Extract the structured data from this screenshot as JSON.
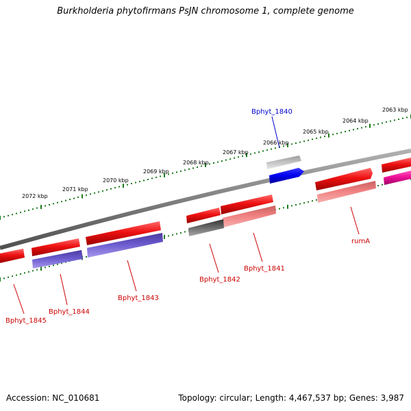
{
  "title": "Burkholderia phytofirmans PsJN chromosome 1, complete genome",
  "footer": {
    "accession": "Accession: NC_010681",
    "summary": "Topology: circular; Length: 4,467,537 bp; Genes: 3,987"
  },
  "scale": {
    "tick_labels": [
      "2063 kbp",
      "2064 kbp",
      "2065 kbp",
      "2066 kbp",
      "2067 kbp",
      "2068 kbp",
      "2069 kbp",
      "2070 kbp",
      "2071 kbp",
      "2072 kbp"
    ]
  },
  "gene_labels": [
    {
      "id": "g1840",
      "text": "Bphyt_1840",
      "color": "#0000cc"
    },
    {
      "id": "g1841",
      "text": "Bphyt_1841",
      "color": "#cc0000"
    },
    {
      "id": "g1842",
      "text": "Bphyt_1842",
      "color": "#cc0000"
    },
    {
      "id": "g1843",
      "text": "Bphyt_1843",
      "color": "#cc0000"
    },
    {
      "id": "g1844",
      "text": "Bphyt_1844",
      "color": "#cc0000"
    },
    {
      "id": "g1845",
      "text": "Bphyt_1845",
      "color": "#cc0000"
    },
    {
      "id": "rumA",
      "text": "rumA",
      "color": "#cc0000"
    }
  ],
  "colors": {
    "backbone": "#808080",
    "ticks": "#1a7a1a",
    "cds_red": "#ee1111",
    "cds_light_red": "#f08080",
    "cds_purple": "#6a5acd",
    "cds_gray": "#666666",
    "cds_light_gray": "#bbbbbb",
    "cds_blue": "#0000ee",
    "cds_magenta": "#ee1199"
  }
}
